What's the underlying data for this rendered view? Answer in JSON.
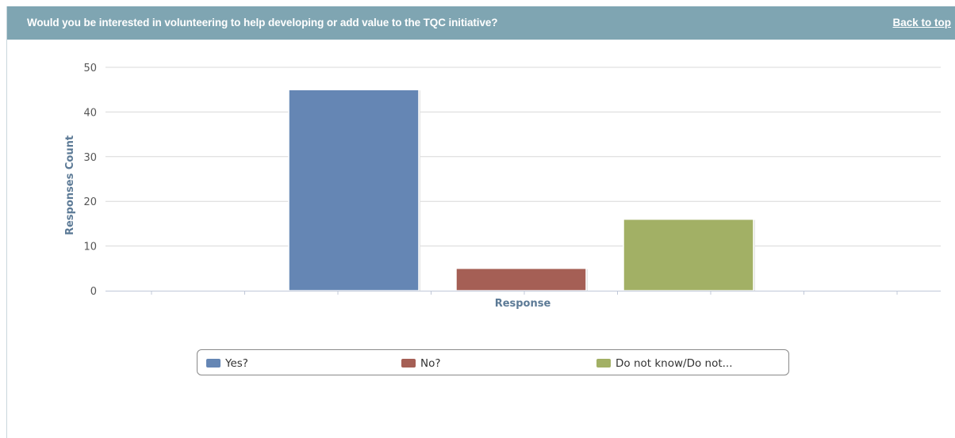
{
  "header": {
    "title": "Would you be interested in volunteering to help developing or add value to the TQC initiative?",
    "back_link": "Back to top"
  },
  "chart_data": {
    "type": "bar",
    "title": "",
    "xlabel": "Response",
    "ylabel": "Responses Count",
    "ylim": [
      0,
      50
    ],
    "yticks": [
      0,
      10,
      20,
      30,
      40,
      50
    ],
    "grid": true,
    "legend_position": "bottom",
    "series": [
      {
        "name": "Yes?",
        "value": 45,
        "color": "#6586b4"
      },
      {
        "name": "No?",
        "value": 5,
        "color": "#a55f55"
      },
      {
        "name": "Do not know/Do not...",
        "value": 16,
        "color": "#a2b065"
      }
    ]
  }
}
